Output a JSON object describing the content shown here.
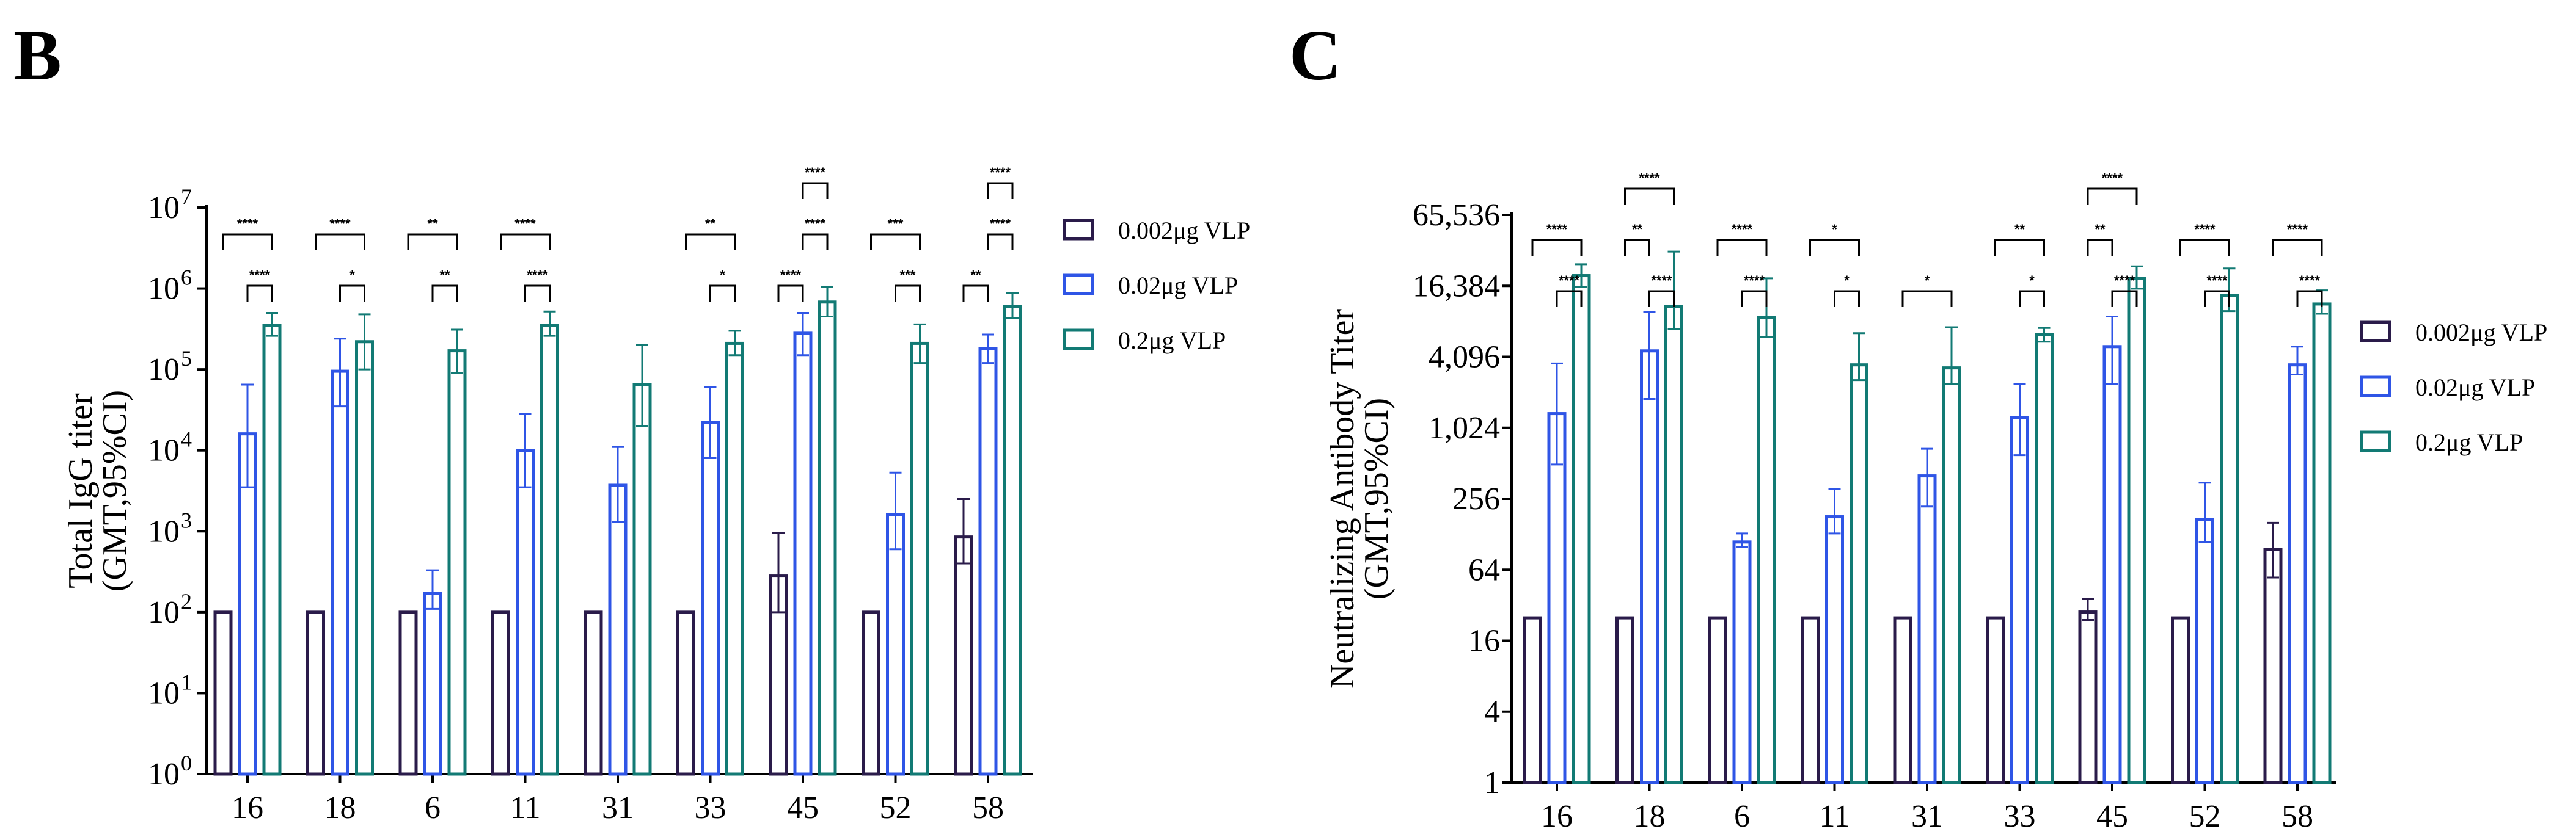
{
  "colors": {
    "low": "#2a1b4a",
    "mid": "#2f55e6",
    "high": "#127a74",
    "axis": "#000000"
  },
  "chart_data": [
    {
      "panel": "B",
      "type": "bar",
      "scale": "log10",
      "ylabel_lines": [
        "Total IgG titer",
        "(GMT,95%CI)"
      ],
      "xlabel": "",
      "ylim": [
        1,
        10000000
      ],
      "yticks": [
        {
          "v": 1,
          "base": "10",
          "exp": "0"
        },
        {
          "v": 10,
          "base": "10",
          "exp": "1"
        },
        {
          "v": 100,
          "base": "10",
          "exp": "2"
        },
        {
          "v": 1000,
          "base": "10",
          "exp": "3"
        },
        {
          "v": 10000,
          "base": "10",
          "exp": "4"
        },
        {
          "v": 100000,
          "base": "10",
          "exp": "5"
        },
        {
          "v": 1000000,
          "base": "10",
          "exp": "6"
        },
        {
          "v": 10000000,
          "base": "10",
          "exp": "7"
        }
      ],
      "categories": [
        "16",
        "18",
        "6",
        "11",
        "31",
        "33",
        "45",
        "52",
        "58"
      ],
      "series": [
        {
          "name": "0.002μg VLP",
          "color_key": "low",
          "values": [
            100,
            100,
            100,
            100,
            100,
            100,
            280,
            100,
            850
          ],
          "lower": [
            null,
            null,
            null,
            null,
            null,
            null,
            100,
            null,
            400
          ],
          "upper": [
            null,
            null,
            null,
            null,
            null,
            null,
            950,
            null,
            2500
          ]
        },
        {
          "name": "0.02μg VLP",
          "color_key": "mid",
          "values": [
            16000,
            95000,
            170,
            10000,
            3700,
            22000,
            280000,
            1600,
            180000
          ],
          "lower": [
            3500,
            35000,
            110,
            3500,
            1300,
            8000,
            150000,
            600,
            120000
          ],
          "upper": [
            65000,
            240000,
            330,
            28000,
            11000,
            60000,
            500000,
            5300,
            270000
          ]
        },
        {
          "name": "0.2μg VLP",
          "color_key": "high",
          "values": [
            350000,
            220000,
            170000,
            350000,
            65000,
            210000,
            680000,
            210000,
            600000
          ],
          "lower": [
            260000,
            100000,
            90000,
            260000,
            20000,
            150000,
            450000,
            120000,
            430000
          ],
          "upper": [
            500000,
            480000,
            310000,
            520000,
            200000,
            300000,
            1050000,
            360000,
            880000
          ]
        }
      ],
      "significance": [
        {
          "cat": 0,
          "from": 0,
          "to": 2,
          "level": 1,
          "label": "****"
        },
        {
          "cat": 0,
          "from": 1,
          "to": 2,
          "level": 0,
          "label": "****"
        },
        {
          "cat": 1,
          "from": 0,
          "to": 2,
          "level": 1,
          "label": "****"
        },
        {
          "cat": 1,
          "from": 1,
          "to": 2,
          "level": 0,
          "label": "*"
        },
        {
          "cat": 2,
          "from": 0,
          "to": 2,
          "level": 1,
          "label": "**"
        },
        {
          "cat": 2,
          "from": 1,
          "to": 2,
          "level": 0,
          "label": "**"
        },
        {
          "cat": 3,
          "from": 0,
          "to": 2,
          "level": 1,
          "label": "****"
        },
        {
          "cat": 3,
          "from": 1,
          "to": 2,
          "level": 0,
          "label": "****"
        },
        {
          "cat": 5,
          "from": 0,
          "to": 2,
          "level": 1,
          "label": "**"
        },
        {
          "cat": 5,
          "from": 1,
          "to": 2,
          "level": 0,
          "label": "*"
        },
        {
          "cat": 6,
          "from": 1,
          "to": 2,
          "level": 2,
          "label": "****"
        },
        {
          "cat": 6,
          "from": 1,
          "to": 2,
          "level": 1,
          "label": "****"
        },
        {
          "cat": 6,
          "from": 0,
          "to": 1,
          "level": 0,
          "label": "****"
        },
        {
          "cat": 7,
          "from": 0,
          "to": 2,
          "level": 1,
          "label": "***"
        },
        {
          "cat": 7,
          "from": 1,
          "to": 2,
          "level": 0,
          "label": "***"
        },
        {
          "cat": 8,
          "from": 1,
          "to": 2,
          "level": 2,
          "label": "****"
        },
        {
          "cat": 8,
          "from": 1,
          "to": 2,
          "level": 1,
          "label": "****"
        },
        {
          "cat": 8,
          "from": 0,
          "to": 1,
          "level": 0,
          "label": "**"
        }
      ],
      "legend_position": "right"
    },
    {
      "panel": "C",
      "type": "bar",
      "scale": "log4",
      "ylabel_lines": [
        "Neutralizing Antibody Titer",
        "(GMT,95%CI)"
      ],
      "xlabel": "",
      "ylim": [
        1,
        65536
      ],
      "yticks": [
        {
          "v": 1,
          "label": "1"
        },
        {
          "v": 4,
          "label": "4"
        },
        {
          "v": 16,
          "label": "16"
        },
        {
          "v": 64,
          "label": "64"
        },
        {
          "v": 256,
          "label": "256"
        },
        {
          "v": 1024,
          "label": "1,024"
        },
        {
          "v": 4096,
          "label": "4,096"
        },
        {
          "v": 16384,
          "label": "16,384"
        },
        {
          "v": 65536,
          "label": "65,536"
        }
      ],
      "categories": [
        "16",
        "18",
        "6",
        "11",
        "31",
        "33",
        "45",
        "52",
        "58"
      ],
      "series": [
        {
          "name": "0.002μg VLP",
          "color_key": "low",
          "values": [
            25,
            25,
            25,
            25,
            25,
            25,
            28,
            25,
            95
          ],
          "lower": [
            null,
            null,
            null,
            null,
            null,
            null,
            24,
            null,
            55
          ],
          "upper": [
            null,
            null,
            null,
            null,
            null,
            null,
            36,
            null,
            160
          ]
        },
        {
          "name": "0.02μg VLP",
          "color_key": "mid",
          "values": [
            1350,
            4600,
            110,
            180,
            400,
            1250,
            5000,
            170,
            3500
          ],
          "lower": [
            500,
            1800,
            100,
            130,
            220,
            600,
            2400,
            110,
            2900
          ],
          "upper": [
            3600,
            9800,
            130,
            310,
            680,
            2400,
            9000,
            350,
            5000
          ]
        },
        {
          "name": "0.2μg VLP",
          "color_key": "high",
          "values": [
            20000,
            11000,
            8800,
            3500,
            3300,
            6300,
            19000,
            13500,
            11500
          ],
          "lower": [
            16000,
            7000,
            6000,
            2600,
            2400,
            5500,
            15500,
            10000,
            9500
          ],
          "upper": [
            25000,
            32000,
            19000,
            6500,
            7300,
            7200,
            24000,
            23000,
            15000
          ]
        }
      ],
      "significance": [
        {
          "cat": 0,
          "from": 0,
          "to": 2,
          "level": 1,
          "label": "****"
        },
        {
          "cat": 0,
          "from": 1,
          "to": 2,
          "level": 0,
          "label": "****"
        },
        {
          "cat": 1,
          "from": 0,
          "to": 2,
          "level": 2,
          "label": "****"
        },
        {
          "cat": 1,
          "from": 0,
          "to": 1,
          "level": 1,
          "label": "**"
        },
        {
          "cat": 1,
          "from": 1,
          "to": 2,
          "level": 0,
          "label": "****"
        },
        {
          "cat": 2,
          "from": 0,
          "to": 2,
          "level": 1,
          "label": "****"
        },
        {
          "cat": 2,
          "from": 1,
          "to": 2,
          "level": 0,
          "label": "****"
        },
        {
          "cat": 3,
          "from": 0,
          "to": 2,
          "level": 1,
          "label": "*"
        },
        {
          "cat": 3,
          "from": 1,
          "to": 2,
          "level": 0,
          "label": "*"
        },
        {
          "cat": 4,
          "from": 0,
          "to": 2,
          "level": 0,
          "label": "*"
        },
        {
          "cat": 5,
          "from": 0,
          "to": 2,
          "level": 1,
          "label": "**"
        },
        {
          "cat": 5,
          "from": 1,
          "to": 2,
          "level": 0,
          "label": "*"
        },
        {
          "cat": 6,
          "from": 0,
          "to": 2,
          "level": 2,
          "label": "****"
        },
        {
          "cat": 6,
          "from": 0,
          "to": 1,
          "level": 1,
          "label": "**"
        },
        {
          "cat": 6,
          "from": 1,
          "to": 2,
          "level": 0,
          "label": "****"
        },
        {
          "cat": 7,
          "from": 0,
          "to": 2,
          "level": 1,
          "label": "****"
        },
        {
          "cat": 7,
          "from": 1,
          "to": 2,
          "level": 0,
          "label": "****"
        },
        {
          "cat": 8,
          "from": 0,
          "to": 2,
          "level": 1,
          "label": "****"
        },
        {
          "cat": 8,
          "from": 1,
          "to": 2,
          "level": 0,
          "label": "****"
        }
      ],
      "legend_position": "right"
    }
  ]
}
